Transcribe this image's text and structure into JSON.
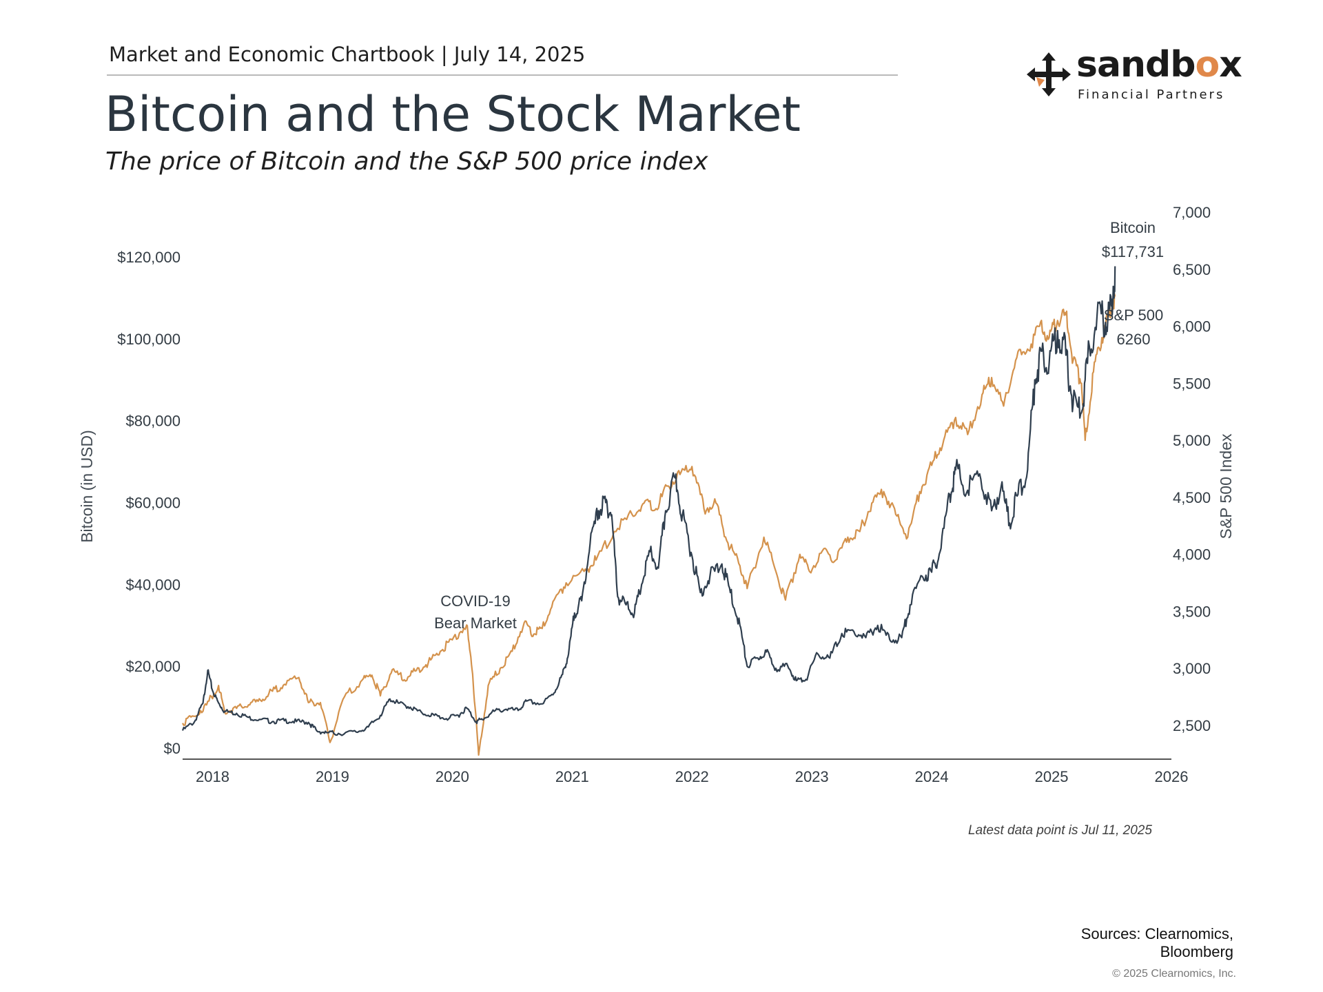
{
  "header": {
    "breadcrumb": "Market and Economic Chartbook | July 14, 2025",
    "title": "Bitcoin and the Stock Market",
    "subtitle": "The price of Bitcoin and the S&P 500 price index"
  },
  "logo": {
    "word_a": "sandb",
    "word_o": "o",
    "word_b": "x",
    "tagline": "Financial Partners"
  },
  "footer": {
    "latest": "Latest data point is Jul 11, 2025",
    "sources_line1": "Sources: Clearnomics,",
    "sources_line2": "Bloomberg",
    "copyright": "© 2025 Clearnomics, Inc."
  },
  "colors": {
    "bitcoin": "#2f3e4e",
    "sp500": "#d4924c",
    "axis": "#555555"
  },
  "chart_data": {
    "type": "line",
    "x_ticks": [
      "2018",
      "2019",
      "2020",
      "2021",
      "2022",
      "2023",
      "2024",
      "2025",
      "2026"
    ],
    "x_range": [
      2017.75,
      2026.0
    ],
    "left_axis": {
      "label": "Bitcoin (in USD)",
      "ticks": [
        "$0",
        "$20,000",
        "$40,000",
        "$60,000",
        "$80,000",
        "$100,000",
        "$120,000"
      ],
      "tick_values": [
        0,
        20000,
        40000,
        60000,
        80000,
        100000,
        120000
      ]
    },
    "right_axis": {
      "label": "S&P 500 Index",
      "ticks": [
        "2,500",
        "3,000",
        "3,500",
        "4,000",
        "4,500",
        "5,000",
        "5,500",
        "6,000",
        "6,500",
        "7,000"
      ],
      "tick_values": [
        2500,
        3000,
        3500,
        4000,
        4500,
        5000,
        5500,
        6000,
        6500,
        7000
      ]
    },
    "annotations": {
      "bitcoin_name": "Bitcoin",
      "bitcoin_value": "$117,731",
      "sp_name": "S&P 500",
      "sp_value": "6260",
      "covid_line1": "COVID-19",
      "covid_line2": "Bear Market"
    },
    "series": [
      {
        "name": "Bitcoin",
        "axis": "left",
        "points": [
          [
            2017.75,
            4300
          ],
          [
            2017.85,
            6500
          ],
          [
            2017.92,
            11000
          ],
          [
            2017.96,
            19000
          ],
          [
            2018.0,
            14000
          ],
          [
            2018.05,
            11000
          ],
          [
            2018.1,
            9000
          ],
          [
            2018.2,
            8500
          ],
          [
            2018.3,
            7500
          ],
          [
            2018.4,
            7000
          ],
          [
            2018.5,
            6500
          ],
          [
            2018.6,
            6700
          ],
          [
            2018.7,
            6500
          ],
          [
            2018.8,
            6300
          ],
          [
            2018.87,
            4200
          ],
          [
            2018.95,
            3800
          ],
          [
            2019.05,
            3600
          ],
          [
            2019.2,
            3900
          ],
          [
            2019.3,
            5200
          ],
          [
            2019.4,
            8000
          ],
          [
            2019.48,
            12000
          ],
          [
            2019.55,
            11000
          ],
          [
            2019.65,
            10000
          ],
          [
            2019.75,
            8500
          ],
          [
            2019.85,
            8000
          ],
          [
            2019.95,
            7200
          ],
          [
            2020.05,
            8000
          ],
          [
            2020.12,
            9800
          ],
          [
            2020.2,
            6500
          ],
          [
            2020.25,
            7000
          ],
          [
            2020.35,
            9000
          ],
          [
            2020.45,
            9500
          ],
          [
            2020.55,
            9200
          ],
          [
            2020.62,
            11500
          ],
          [
            2020.75,
            10800
          ],
          [
            2020.85,
            13500
          ],
          [
            2020.92,
            18000
          ],
          [
            2020.97,
            23000
          ],
          [
            2021.02,
            33000
          ],
          [
            2021.08,
            36000
          ],
          [
            2021.15,
            50000
          ],
          [
            2021.22,
            58000
          ],
          [
            2021.28,
            60000
          ],
          [
            2021.33,
            57000
          ],
          [
            2021.38,
            37000
          ],
          [
            2021.45,
            35000
          ],
          [
            2021.52,
            33000
          ],
          [
            2021.58,
            40000
          ],
          [
            2021.65,
            48000
          ],
          [
            2021.72,
            44000
          ],
          [
            2021.78,
            58000
          ],
          [
            2021.86,
            66000
          ],
          [
            2021.92,
            57000
          ],
          [
            2022.0,
            47000
          ],
          [
            2022.07,
            38000
          ],
          [
            2022.15,
            42000
          ],
          [
            2022.25,
            45000
          ],
          [
            2022.32,
            38000
          ],
          [
            2022.4,
            30000
          ],
          [
            2022.46,
            20000
          ],
          [
            2022.55,
            22000
          ],
          [
            2022.62,
            23500
          ],
          [
            2022.7,
            19500
          ],
          [
            2022.8,
            20000
          ],
          [
            2022.87,
            16500
          ],
          [
            2022.95,
            16800
          ],
          [
            2023.05,
            23000
          ],
          [
            2023.15,
            22000
          ],
          [
            2023.25,
            28000
          ],
          [
            2023.35,
            28500
          ],
          [
            2023.45,
            27000
          ],
          [
            2023.55,
            30000
          ],
          [
            2023.65,
            26500
          ],
          [
            2023.75,
            27000
          ],
          [
            2023.82,
            35000
          ],
          [
            2023.92,
            42000
          ],
          [
            2024.0,
            43000
          ],
          [
            2024.07,
            48000
          ],
          [
            2024.15,
            62000
          ],
          [
            2024.2,
            68000
          ],
          [
            2024.3,
            63000
          ],
          [
            2024.4,
            67000
          ],
          [
            2024.5,
            58000
          ],
          [
            2024.58,
            64000
          ],
          [
            2024.65,
            55000
          ],
          [
            2024.72,
            62000
          ],
          [
            2024.8,
            68000
          ],
          [
            2024.86,
            90000
          ],
          [
            2024.92,
            97000
          ],
          [
            2024.98,
            94000
          ],
          [
            2025.05,
            102000
          ],
          [
            2025.12,
            96000
          ],
          [
            2025.18,
            84000
          ],
          [
            2025.25,
            82000
          ],
          [
            2025.3,
            94000
          ],
          [
            2025.38,
            106000
          ],
          [
            2025.45,
            104000
          ],
          [
            2025.5,
            108000
          ],
          [
            2025.53,
            117731
          ]
        ]
      },
      {
        "name": "S&P 500",
        "axis": "right",
        "points": [
          [
            2017.75,
            2520
          ],
          [
            2017.85,
            2580
          ],
          [
            2017.95,
            2680
          ],
          [
            2018.05,
            2850
          ],
          [
            2018.1,
            2620
          ],
          [
            2018.2,
            2650
          ],
          [
            2018.3,
            2680
          ],
          [
            2018.4,
            2720
          ],
          [
            2018.5,
            2800
          ],
          [
            2018.6,
            2860
          ],
          [
            2018.72,
            2920
          ],
          [
            2018.8,
            2700
          ],
          [
            2018.9,
            2700
          ],
          [
            2018.98,
            2350
          ],
          [
            2019.1,
            2750
          ],
          [
            2019.25,
            2900
          ],
          [
            2019.33,
            2940
          ],
          [
            2019.4,
            2760
          ],
          [
            2019.5,
            2990
          ],
          [
            2019.6,
            2900
          ],
          [
            2019.7,
            2980
          ],
          [
            2019.8,
            3050
          ],
          [
            2019.9,
            3150
          ],
          [
            2020.0,
            3250
          ],
          [
            2020.12,
            3380
          ],
          [
            2020.17,
            2950
          ],
          [
            2020.22,
            2240
          ],
          [
            2020.3,
            2850
          ],
          [
            2020.4,
            3000
          ],
          [
            2020.5,
            3150
          ],
          [
            2020.6,
            3400
          ],
          [
            2020.68,
            3300
          ],
          [
            2020.75,
            3350
          ],
          [
            2020.85,
            3600
          ],
          [
            2020.95,
            3750
          ],
          [
            2021.1,
            3850
          ],
          [
            2021.2,
            3950
          ],
          [
            2021.35,
            4200
          ],
          [
            2021.5,
            4350
          ],
          [
            2021.6,
            4450
          ],
          [
            2021.7,
            4400
          ],
          [
            2021.8,
            4600
          ],
          [
            2021.9,
            4700
          ],
          [
            2022.0,
            4770
          ],
          [
            2022.1,
            4400
          ],
          [
            2022.2,
            4450
          ],
          [
            2022.3,
            4100
          ],
          [
            2022.4,
            3900
          ],
          [
            2022.46,
            3700
          ],
          [
            2022.6,
            4150
          ],
          [
            2022.7,
            3850
          ],
          [
            2022.78,
            3600
          ],
          [
            2022.9,
            4000
          ],
          [
            2022.98,
            3850
          ],
          [
            2023.1,
            4050
          ],
          [
            2023.2,
            3950
          ],
          [
            2023.3,
            4150
          ],
          [
            2023.4,
            4200
          ],
          [
            2023.5,
            4450
          ],
          [
            2023.6,
            4550
          ],
          [
            2023.7,
            4350
          ],
          [
            2023.8,
            4150
          ],
          [
            2023.9,
            4550
          ],
          [
            2024.0,
            4780
          ],
          [
            2024.1,
            5000
          ],
          [
            2024.2,
            5200
          ],
          [
            2024.3,
            5050
          ],
          [
            2024.42,
            5400
          ],
          [
            2024.5,
            5550
          ],
          [
            2024.6,
            5300
          ],
          [
            2024.7,
            5700
          ],
          [
            2024.8,
            5800
          ],
          [
            2024.9,
            6000
          ],
          [
            2024.98,
            5900
          ],
          [
            2025.05,
            6050
          ],
          [
            2025.12,
            6100
          ],
          [
            2025.18,
            5700
          ],
          [
            2025.25,
            5500
          ],
          [
            2025.28,
            5000
          ],
          [
            2025.35,
            5600
          ],
          [
            2025.42,
            5900
          ],
          [
            2025.48,
            6100
          ],
          [
            2025.53,
            6260
          ]
        ]
      }
    ]
  }
}
